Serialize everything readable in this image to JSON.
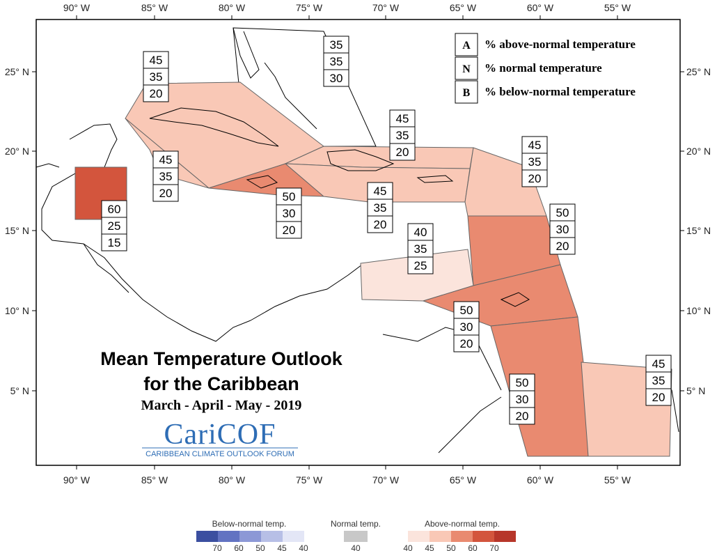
{
  "axes": {
    "lon_ticks": [
      "90° W",
      "85° W",
      "80° W",
      "75° W",
      "70° W",
      "65° W",
      "60° W",
      "55° W"
    ],
    "lat_ticks": [
      "25° N",
      "20° N",
      "15° N",
      "10° N",
      "5° N"
    ]
  },
  "title": {
    "line1": "Mean Temperature Outlook",
    "line2": "for the Caribbean",
    "period": "March - April - May - 2019"
  },
  "logo": {
    "main": "CariCOF",
    "sub": "CARIBBEAN CLIMATE OUTLOOK FORUM"
  },
  "key": [
    {
      "letter": "A",
      "text": "% above-normal temperature"
    },
    {
      "letter": "N",
      "text": "% normal temperature"
    },
    {
      "letter": "B",
      "text": "% below-normal temperature"
    }
  ],
  "regions": [
    {
      "name": "bahamas",
      "values": [
        "35",
        "35",
        "30"
      ],
      "fill": "none"
    },
    {
      "name": "cuba-west",
      "values": [
        "45",
        "35",
        "20"
      ],
      "fill": "#f9c8b6"
    },
    {
      "name": "cuba-south",
      "values": [
        "45",
        "35",
        "20"
      ],
      "fill": "#f9c8b6"
    },
    {
      "name": "jamaica",
      "values": [
        "50",
        "30",
        "20"
      ],
      "fill": "#e98a70"
    },
    {
      "name": "belize",
      "values": [
        "60",
        "25",
        "15"
      ],
      "fill": "#d3553d"
    },
    {
      "name": "hispaniola",
      "values": [
        "45",
        "35",
        "20"
      ],
      "fill": "#f9c8b6"
    },
    {
      "name": "hispaniola-south",
      "values": [
        "45",
        "35",
        "20"
      ],
      "fill": "#f9c8b6"
    },
    {
      "name": "northern-leewards",
      "values": [
        "45",
        "35",
        "20"
      ],
      "fill": "#f9c8b6"
    },
    {
      "name": "windwards",
      "values": [
        "50",
        "30",
        "20"
      ],
      "fill": "#e98a70"
    },
    {
      "name": "abc-islands",
      "values": [
        "40",
        "35",
        "25"
      ],
      "fill": "#fbe4dc"
    },
    {
      "name": "trinidad",
      "values": [
        "50",
        "30",
        "20"
      ],
      "fill": "#e98a70"
    },
    {
      "name": "guyana",
      "values": [
        "50",
        "30",
        "20"
      ],
      "fill": "#e98a70"
    },
    {
      "name": "suriname-guiana",
      "values": [
        "45",
        "35",
        "20"
      ],
      "fill": "#f9c8b6"
    }
  ],
  "colorbar": {
    "below_title": "Below-normal temp.",
    "normal_title": "Normal temp.",
    "above_title": "Above-normal temp.",
    "below_ticks": [
      "70",
      "60",
      "50",
      "45",
      "40"
    ],
    "normal_ticks": [
      "40"
    ],
    "above_ticks": [
      "40",
      "45",
      "50",
      "60",
      "70"
    ],
    "below_colors": [
      "#3b4fa0",
      "#6273c2",
      "#8c98d6",
      "#b7bfe6",
      "#e3e6f6"
    ],
    "normal_color": "#c8c8c8",
    "above_colors": [
      "#fbe4dc",
      "#f9c8b6",
      "#e98a70",
      "#d3553d",
      "#b7362a"
    ]
  }
}
